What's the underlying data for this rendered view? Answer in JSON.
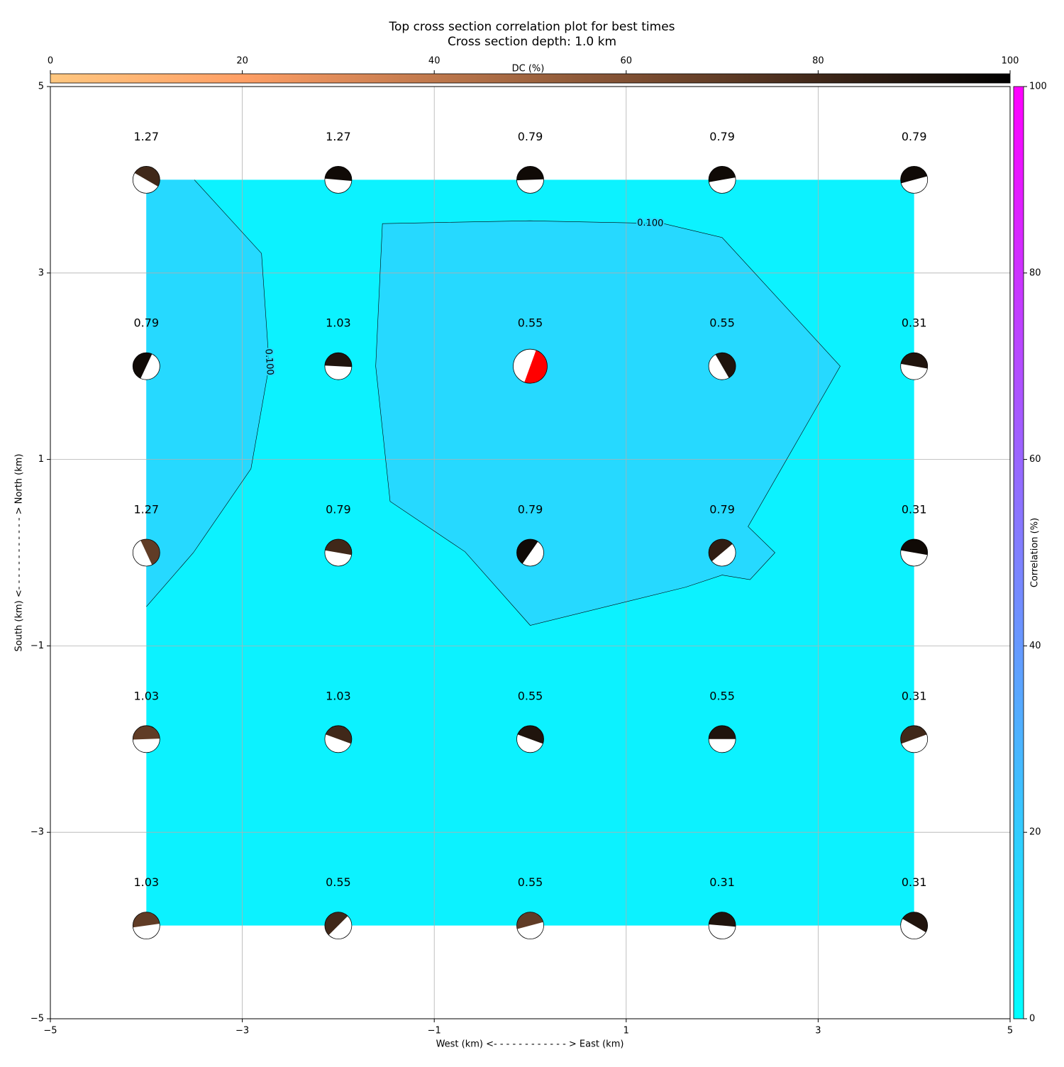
{
  "chart_data": {
    "type": "contour",
    "title": "Top cross section correlation plot for best times",
    "subtitle": "Cross section depth: 1.0 km",
    "x_label": "West (km) <- - - - - - - - - - - - > East (km)",
    "y_label": "South (km) <- - - - - - - - - - - - > North (km)",
    "xlim": [
      -5,
      5
    ],
    "ylim": [
      -5,
      5
    ],
    "xticks": [
      {
        "value": -5,
        "label": "−5"
      },
      {
        "value": -3,
        "label": "−3"
      },
      {
        "value": -1,
        "label": "−1"
      },
      1,
      3,
      5
    ],
    "yticks": [
      {
        "value": -5,
        "label": "−5"
      },
      {
        "value": -3,
        "label": "−3"
      },
      {
        "value": -1,
        "label": "−1"
      },
      1,
      3,
      5
    ],
    "grid": true,
    "base_fill": "#0cf2ff",
    "contours": [
      {
        "level": 0.1,
        "label": "0.100",
        "fill": "#26d9ff",
        "x": [
          -3.5,
          -2.8,
          -2.72,
          -2.91,
          -3.51,
          -4.0
        ],
        "y": [
          4.0,
          3.21,
          2.01,
          0.9,
          0.0,
          -0.58
        ]
      },
      {
        "level": 0.1,
        "label": "0.100",
        "fill": "#26d9ff",
        "x": [
          -1.54,
          0.0,
          1.39,
          2.0,
          3.23,
          2.27,
          2.55,
          2.29,
          2.0,
          1.62,
          0.0,
          -0.68,
          -1.46,
          -1.61,
          -1.54
        ],
        "y": [
          3.53,
          3.56,
          3.53,
          3.38,
          2.0,
          0.28,
          0.0,
          -0.29,
          -0.24,
          -0.37,
          -0.78,
          0.01,
          0.55,
          2.0,
          3.53
        ]
      }
    ],
    "x": [
      -4,
      -2,
      0,
      2,
      4,
      -4,
      -2,
      0,
      2,
      4,
      -4,
      -2,
      0,
      2,
      4,
      -4,
      -2,
      0,
      2,
      4,
      -4,
      -2,
      0,
      2,
      4
    ],
    "y": [
      4,
      4,
      4,
      4,
      4,
      2,
      2,
      2,
      2,
      2,
      0,
      0,
      0,
      0,
      0,
      -2,
      -2,
      -2,
      -2,
      -2,
      -4,
      -4,
      -4,
      -4,
      -4
    ],
    "values": [
      1.27,
      1.27,
      0.79,
      0.79,
      0.79,
      0.79,
      1.03,
      0.55,
      0.55,
      0.31,
      1.27,
      0.79,
      0.79,
      0.79,
      0.31,
      1.03,
      1.03,
      0.55,
      0.55,
      0.31,
      1.03,
      0.55,
      0.55,
      0.31,
      0.31
    ],
    "dc": [
      80,
      95,
      95,
      95,
      95,
      95,
      90,
      90,
      90,
      90,
      70,
      80,
      95,
      85,
      95,
      70,
      80,
      90,
      90,
      80,
      70,
      80,
      70,
      90,
      90
    ],
    "angle": [
      210,
      185,
      178,
      170,
      165,
      115,
      183,
      290,
      240,
      190,
      245,
      190,
      125,
      140,
      190,
      178,
      200,
      200,
      180,
      160,
      172,
      135,
      165,
      185,
      210
    ],
    "best_index": 7,
    "best_color": "#ff0000",
    "dc_colorbar": {
      "label": "DC (%)",
      "lim": [
        0,
        100
      ],
      "ticks": [
        0,
        20,
        40,
        60,
        80,
        100
      ],
      "cmap": "copper_r"
    },
    "corr_colorbar": {
      "label": "Correlation (%)",
      "lim": [
        0,
        100
      ],
      "ticks": [
        0,
        20,
        40,
        60,
        80,
        100
      ],
      "cmap": "cool"
    }
  }
}
